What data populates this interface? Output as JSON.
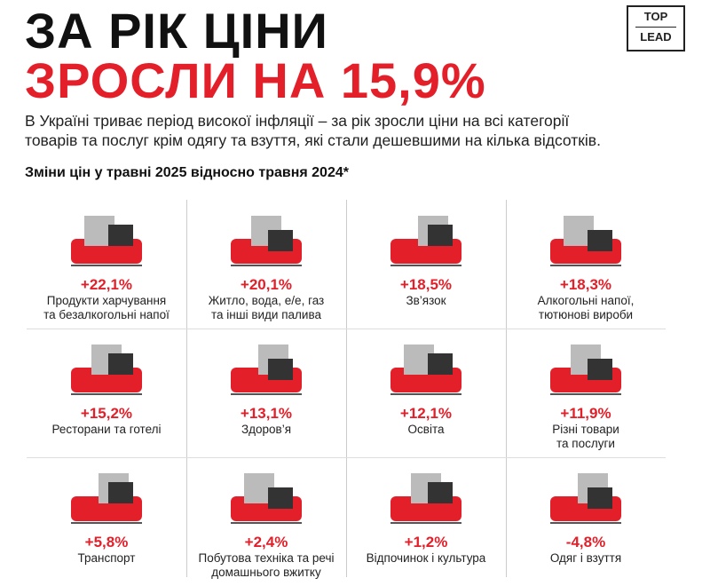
{
  "header": {
    "title_lines": [
      "ЗА РІК ЦІНИ",
      "ЗРОСЛИ НА 15,9%"
    ],
    "logo": [
      "TOP",
      "LEAD"
    ]
  },
  "intro": [
    "В Україні триває період високої інфляції – за рік зросли ціни на всі категорії",
    "товарів та послуг крім одягу та взуття, які стали дешевшими на кілька відсотків."
  ],
  "subtitle": "Зміни цін у травні 2025 відносно травня 2024*",
  "items": [
    {
      "value": "+22,1%",
      "label": [
        "Продукти харчування",
        "та безалкогольні напої"
      ]
    },
    {
      "value": "+20,1%",
      "label": [
        "Житло, вода, е/е, газ",
        "та інші види палива"
      ]
    },
    {
      "value": "+18,5%",
      "label": [
        "Зв’язок"
      ]
    },
    {
      "value": "+18,3%",
      "label": [
        "Алкогольні напої,",
        "тютюнові вироби"
      ]
    },
    {
      "value": "+15,2%",
      "label": [
        "Ресторани та готелі"
      ]
    },
    {
      "value": "+13,1%",
      "label": [
        "Здоров’я"
      ]
    },
    {
      "value": "+12,1%",
      "label": [
        "Освіта"
      ]
    },
    {
      "value": "+11,9%",
      "label": [
        "Різні товари",
        "та послуги"
      ]
    },
    {
      "value": "+5,8%",
      "label": [
        "Транспорт"
      ]
    },
    {
      "value": "+2,4%",
      "label": [
        "Побутова техніка та речі",
        "домашнього вжитку"
      ]
    },
    {
      "value": "+1,2%",
      "label": [
        "Відпочинок і культура"
      ]
    },
    {
      "value": "-4,8%",
      "label": [
        "Одяг і взуття"
      ]
    }
  ]
}
